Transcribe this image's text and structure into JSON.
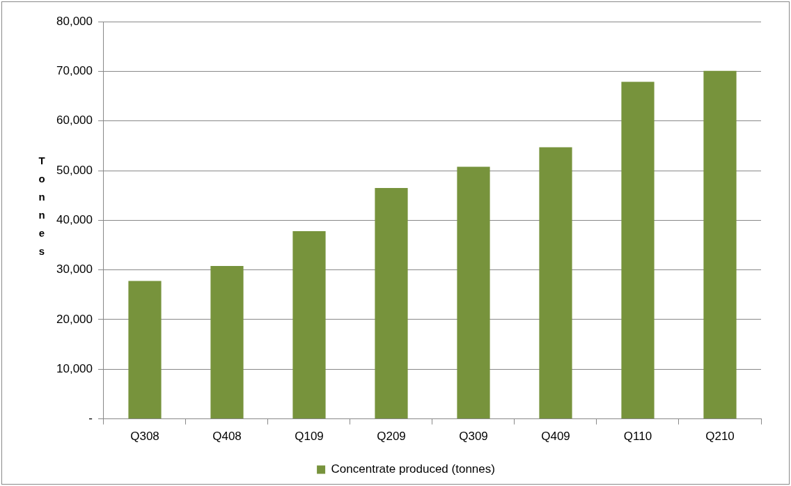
{
  "chart_data": {
    "type": "bar",
    "ylabel": "Tonnes",
    "categories": [
      "Q308",
      "Q408",
      "Q109",
      "Q209",
      "Q309",
      "Q409",
      "Q110",
      "Q210"
    ],
    "series": [
      {
        "name": "Concentrate produced (tonnes)",
        "color": "#77933c",
        "values": [
          27800,
          30800,
          37800,
          46500,
          50800,
          54700,
          67900,
          70100
        ]
      }
    ],
    "ylim": [
      0,
      80000
    ],
    "yticks": [
      {
        "value": 0,
        "label": "-"
      },
      {
        "value": 10000,
        "label": "10,000"
      },
      {
        "value": 20000,
        "label": "20,000"
      },
      {
        "value": 30000,
        "label": "30,000"
      },
      {
        "value": 40000,
        "label": "40,000"
      },
      {
        "value": 50000,
        "label": "50,000"
      },
      {
        "value": 60000,
        "label": "60,000"
      },
      {
        "value": 70000,
        "label": "70,000"
      },
      {
        "value": 80000,
        "label": "80,000"
      }
    ],
    "grid": "y",
    "legend": "bottom"
  }
}
